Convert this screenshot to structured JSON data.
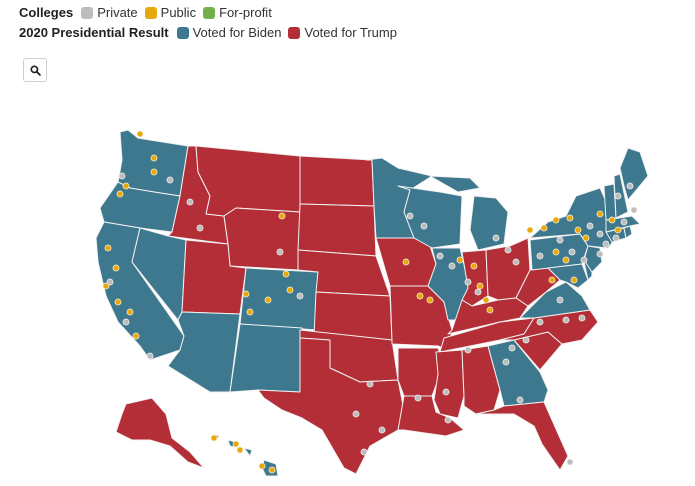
{
  "legend": {
    "colleges_title": "Colleges",
    "colleges": [
      {
        "label": "Private",
        "color": "#bdbdbd"
      },
      {
        "label": "Public",
        "color": "#e8a90e"
      },
      {
        "label": "For-profit",
        "color": "#74b04a"
      }
    ],
    "result_title": "2020 Presidential Result",
    "results": [
      {
        "label": "Voted for Biden",
        "color": "#3d788f"
      },
      {
        "label": "Voted for Trump",
        "color": "#b32e36"
      }
    ]
  },
  "search": {
    "icon": "search-icon"
  },
  "map": {
    "biden_states": [
      "Washington",
      "Oregon",
      "California",
      "Nevada",
      "Arizona",
      "Colorado",
      "New Mexico",
      "Minnesota",
      "Wisconsin",
      "Illinois",
      "Michigan",
      "Georgia",
      "Virginia",
      "Pennsylvania",
      "New York",
      "Maryland",
      "Delaware",
      "New Jersey",
      "Connecticut",
      "Rhode Island",
      "Massachusetts",
      "Vermont",
      "New Hampshire",
      "Maine",
      "Hawaii"
    ],
    "trump_states": [
      "Idaho",
      "Montana",
      "Wyoming",
      "Utah",
      "North Dakota",
      "South Dakota",
      "Nebraska",
      "Kansas",
      "Oklahoma",
      "Texas",
      "Iowa",
      "Missouri",
      "Arkansas",
      "Louisiana",
      "Indiana",
      "Ohio",
      "Kentucky",
      "Tennessee",
      "Mississippi",
      "Alabama",
      "Florida",
      "South Carolina",
      "North Carolina",
      "West Virginia",
      "Alaska"
    ]
  }
}
